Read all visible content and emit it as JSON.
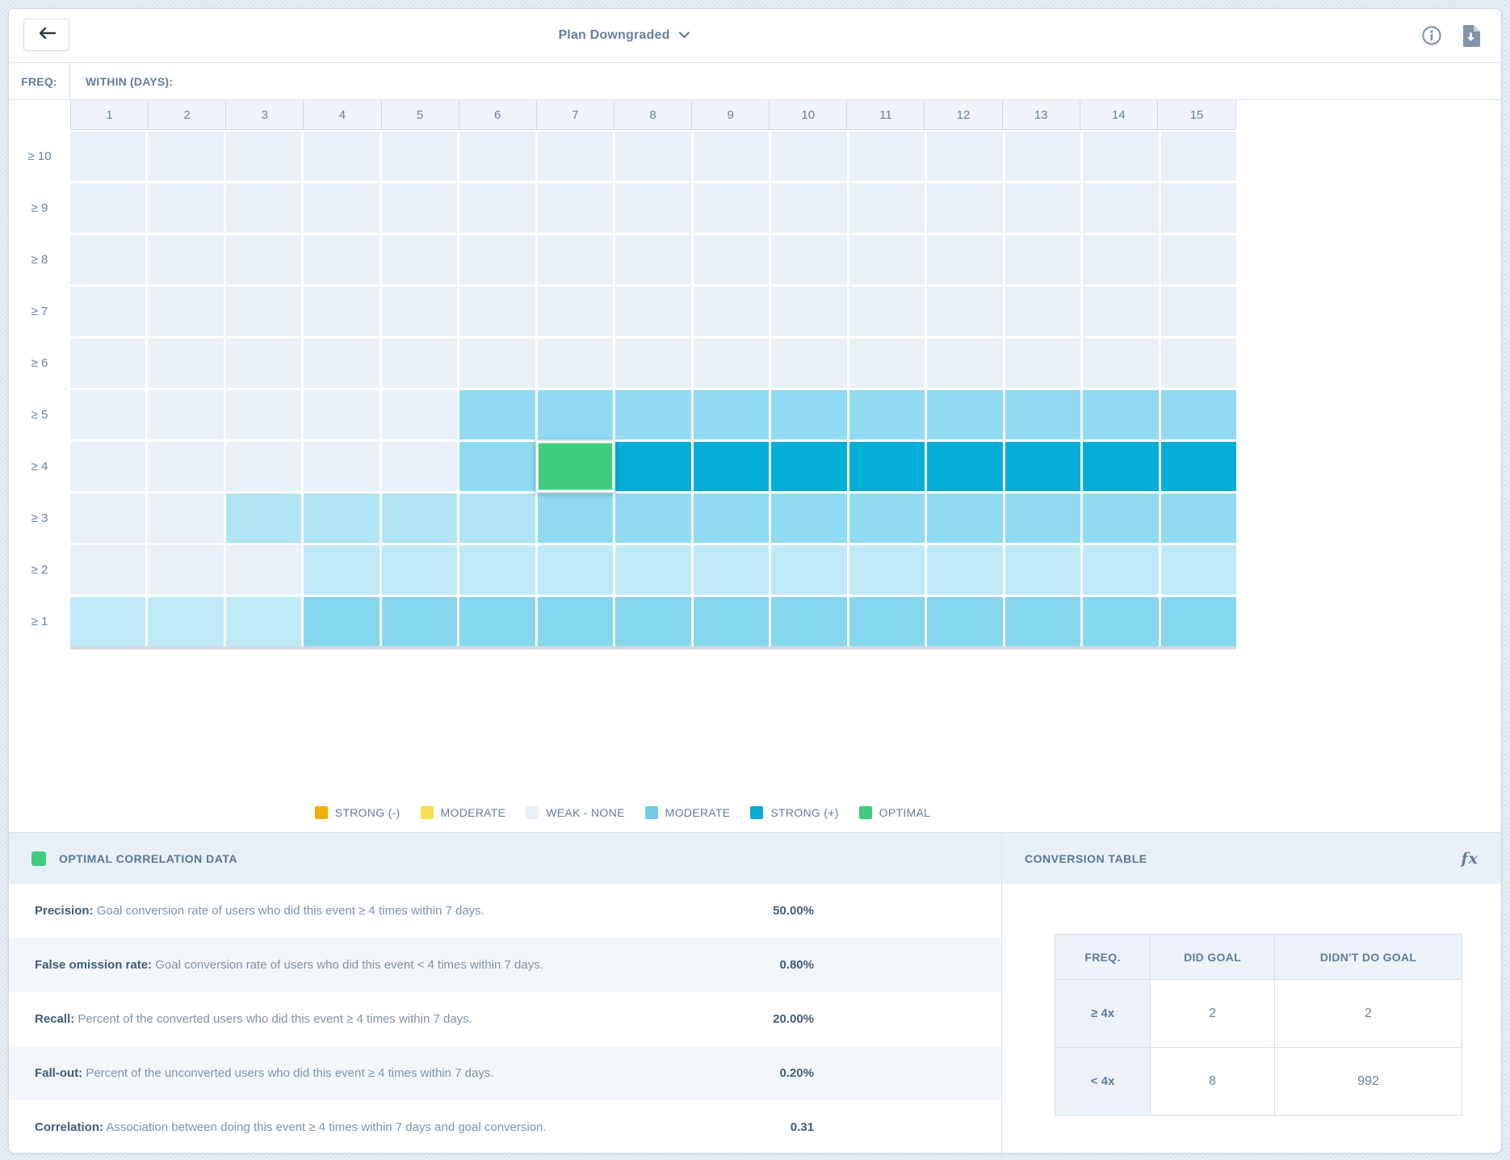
{
  "colors": {
    "accent_green": "#3ecc80",
    "slate_text": "#64809e",
    "icon_gray": "#7e95ad",
    "cell_classes": {
      "W": "#eaf0f7",
      "L": "#c0e9f7",
      "L2": "#b2e5f4",
      "M": "#90dbf1",
      "M2": "#87d7ee",
      "S": "#05aed7",
      "O": "#3ecc80"
    }
  },
  "topbar": {
    "title": "Plan Downgraded",
    "icons": {
      "back": "arrow-left",
      "title_chevron": "chevron-down",
      "info": "info-circle",
      "download": "file-download"
    }
  },
  "grid": {
    "freq_label": "FREQ:",
    "within_label": "WITHIN (DAYS):"
  },
  "legend": [
    {
      "label": "STRONG (-)",
      "color": "#f0b102",
      "textured": false
    },
    {
      "label": "MODERATE",
      "color": "#f8dc51",
      "textured": false
    },
    {
      "label": "WEAK - NONE",
      "color": "#eaf0f7",
      "textured": false
    },
    {
      "label": "MODERATE",
      "color": "#72cbe4",
      "textured": true
    },
    {
      "label": "STRONG (+)",
      "color": "#0aabd6",
      "textured": false
    },
    {
      "label": "OPTIMAL",
      "color": "#3ecc80",
      "textured": false
    }
  ],
  "correlation_panel": {
    "title": "OPTIMAL CORRELATION DATA",
    "rows": [
      {
        "label": "Precision:",
        "description": "Goal conversion rate of users who did this event ≥ 4 times within 7 days.",
        "value": "50.00%"
      },
      {
        "label": "False omission rate:",
        "description": "Goal conversion rate of users who did this event < 4 times within 7 days.",
        "value": "0.80%"
      },
      {
        "label": "Recall:",
        "description": "Percent of the converted users who did this event ≥ 4 times within 7 days.",
        "value": "20.00%"
      },
      {
        "label": "Fall-out:",
        "description": "Percent of the unconverted users who did this event ≥ 4 times within 7 days.",
        "value": "0.20%"
      },
      {
        "label": "Correlation:",
        "description": "Association between doing this event ≥ 4 times within 7 days and goal conversion.",
        "value": "0.31"
      }
    ]
  },
  "conversion_panel": {
    "title": "CONVERSION TABLE",
    "fx_icon": "fx",
    "table": {
      "headers": [
        "FREQ.",
        "DID GOAL",
        "DIDN'T DO GOAL"
      ],
      "rows": [
        [
          "≥ 4x",
          "2",
          "2"
        ],
        [
          "< 4x",
          "8",
          "992"
        ]
      ]
    }
  },
  "chart_data": {
    "type": "heatmap",
    "title": "Plan Downgraded",
    "xlabel": "WITHIN (DAYS):",
    "ylabel": "FREQ:",
    "x_categories": [
      "1",
      "2",
      "3",
      "4",
      "5",
      "6",
      "7",
      "8",
      "9",
      "10",
      "11",
      "12",
      "13",
      "14",
      "15"
    ],
    "y_categories": [
      "≥ 10",
      "≥ 9",
      "≥ 8",
      "≥ 7",
      "≥ 6",
      "≥ 5",
      "≥ 4",
      "≥ 3",
      "≥ 2",
      "≥ 1"
    ],
    "code_legend": {
      "W": "weak-none",
      "L": "weak-moderate lightest",
      "L2": "weak-moderate light",
      "M": "moderate",
      "M2": "moderate deep",
      "S": "strong-positive",
      "O": "optimal"
    },
    "cells": [
      [
        "W",
        "W",
        "W",
        "W",
        "W",
        "W",
        "W",
        "W",
        "W",
        "W",
        "W",
        "W",
        "W",
        "W",
        "W"
      ],
      [
        "W",
        "W",
        "W",
        "W",
        "W",
        "W",
        "W",
        "W",
        "W",
        "W",
        "W",
        "W",
        "W",
        "W",
        "W"
      ],
      [
        "W",
        "W",
        "W",
        "W",
        "W",
        "W",
        "W",
        "W",
        "W",
        "W",
        "W",
        "W",
        "W",
        "W",
        "W"
      ],
      [
        "W",
        "W",
        "W",
        "W",
        "W",
        "W",
        "W",
        "W",
        "W",
        "W",
        "W",
        "W",
        "W",
        "W",
        "W"
      ],
      [
        "W",
        "W",
        "W",
        "W",
        "W",
        "W",
        "W",
        "W",
        "W",
        "W",
        "W",
        "W",
        "W",
        "W",
        "W"
      ],
      [
        "W",
        "W",
        "W",
        "W",
        "W",
        "M",
        "M",
        "M",
        "M",
        "M",
        "M",
        "M",
        "M",
        "M",
        "M"
      ],
      [
        "W",
        "W",
        "W",
        "W",
        "W",
        "M",
        "O",
        "S",
        "S",
        "S",
        "S",
        "S",
        "S",
        "S",
        "S"
      ],
      [
        "W",
        "W",
        "L2",
        "L2",
        "L2",
        "L2",
        "M",
        "M",
        "M",
        "M",
        "M",
        "M",
        "M",
        "M",
        "M"
      ],
      [
        "W",
        "W",
        "W",
        "L",
        "L",
        "L",
        "L",
        "L",
        "L",
        "L",
        "L",
        "L",
        "L",
        "L",
        "L"
      ],
      [
        "L",
        "L",
        "L",
        "M2",
        "M2",
        "M2",
        "M2",
        "M2",
        "M2",
        "M2",
        "M2",
        "M2",
        "M2",
        "M2",
        "M2"
      ]
    ],
    "optimal_point": {
      "freq": "≥ 4",
      "days": "7"
    },
    "legend_position": "bottom-center",
    "grid": "white gaps between cells"
  }
}
